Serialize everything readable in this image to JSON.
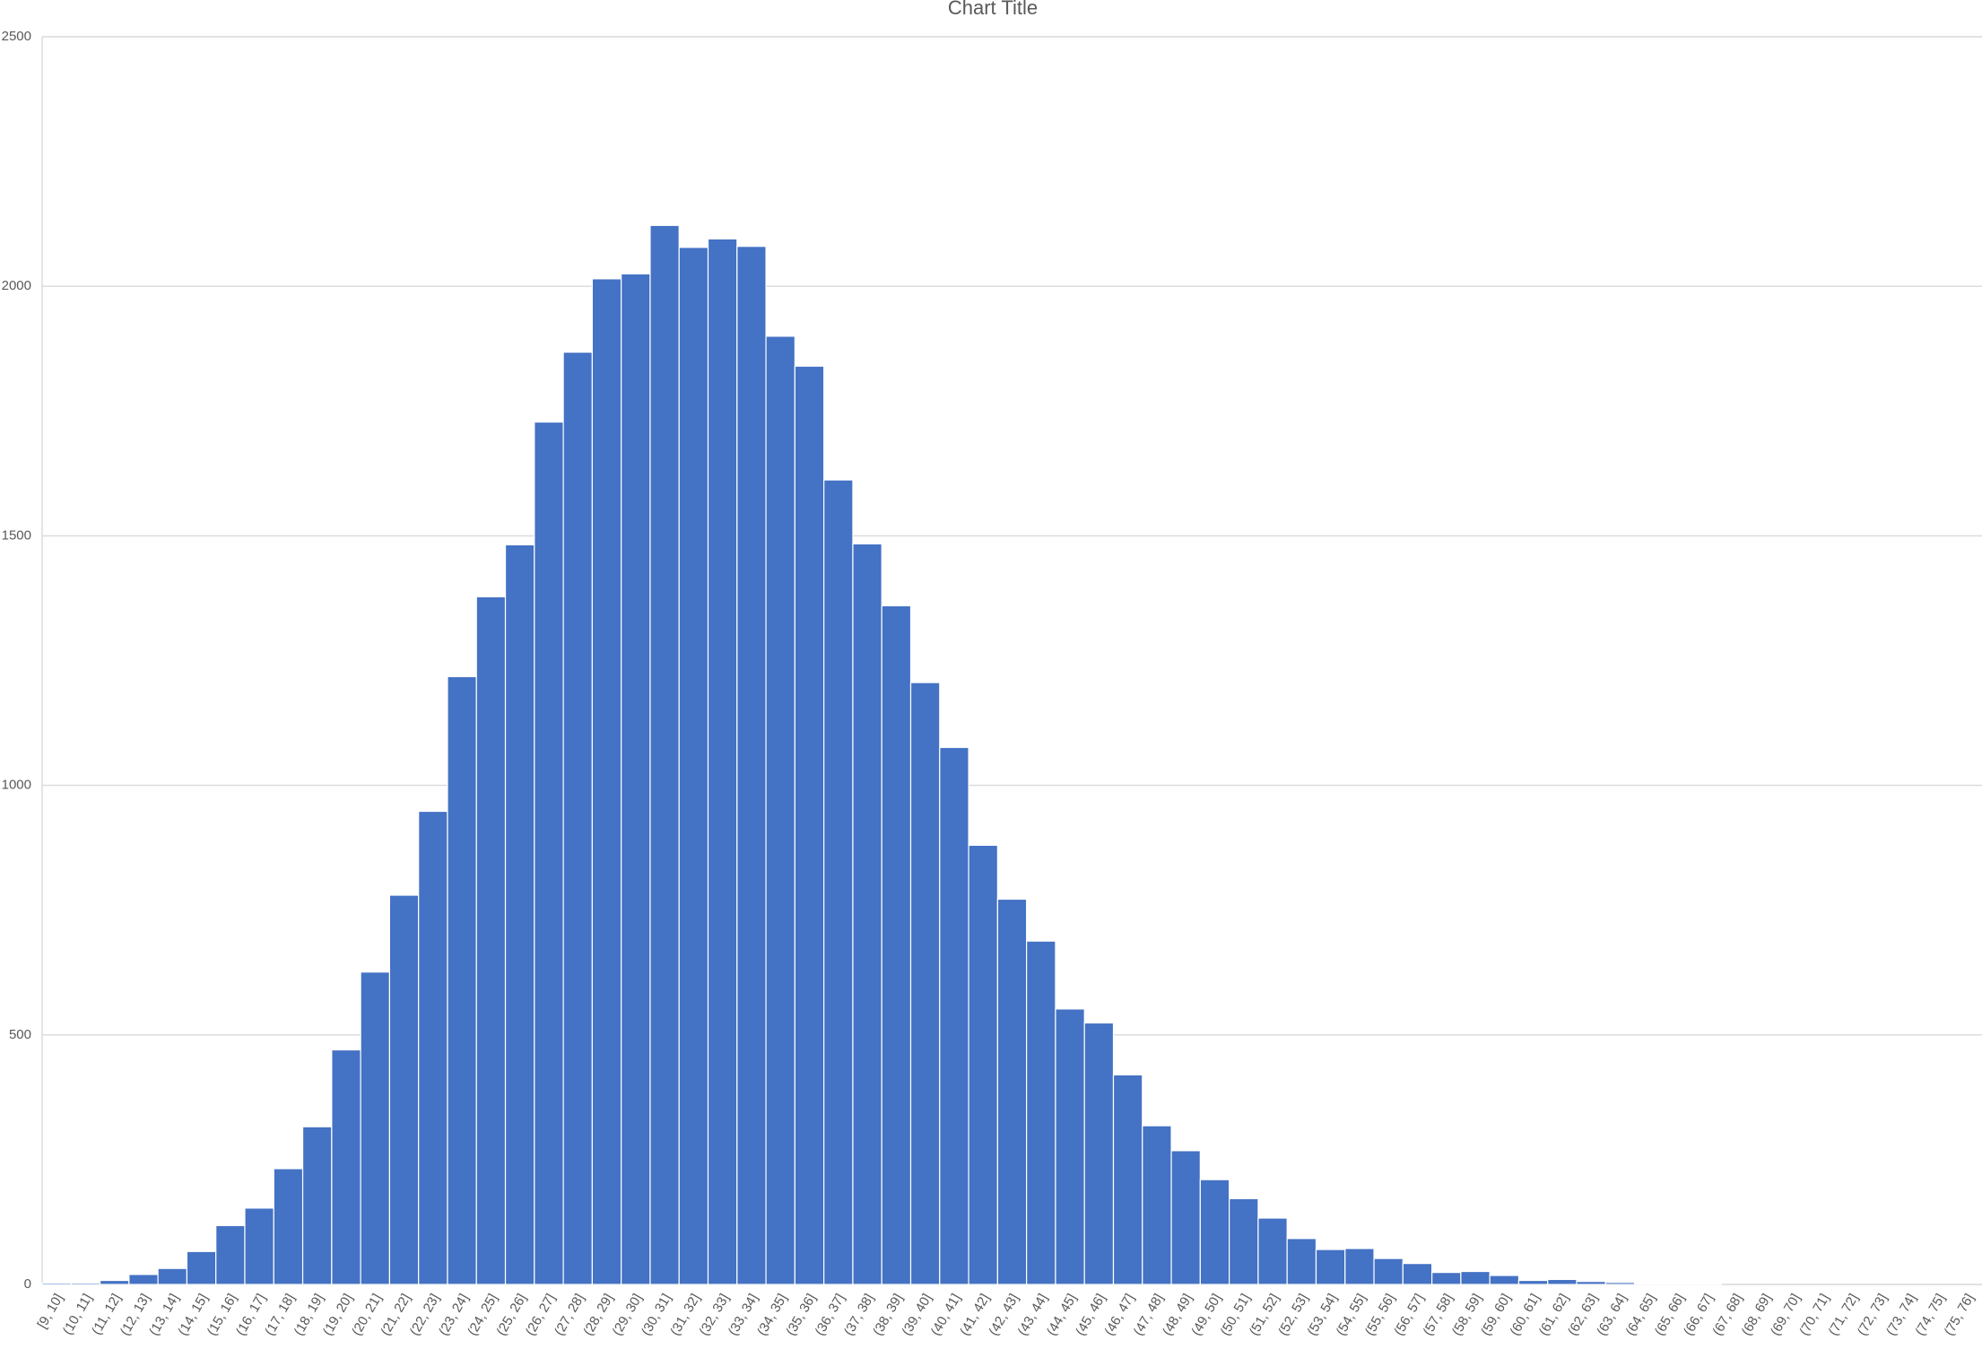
{
  "chart_data": {
    "type": "bar",
    "title": "Chart Title",
    "categories": [
      "[9, 10]",
      "(10, 11]",
      "(11, 12]",
      "(12, 13]",
      "(13, 14]",
      "(14, 15]",
      "(15, 16]",
      "(16, 17]",
      "(17, 18]",
      "(18, 19]",
      "(19, 20]",
      "(20, 21]",
      "(21, 22]",
      "(22, 23]",
      "(23, 24]",
      "(24, 25]",
      "(25, 26]",
      "(26, 27]",
      "(27, 28]",
      "(28, 29]",
      "(29, 30]",
      "(30, 31]",
      "(31, 32]",
      "(32, 33]",
      "(33, 34]",
      "(34, 35]",
      "(35, 36]",
      "(36, 37]",
      "(37, 38]",
      "(38, 39]",
      "(39, 40]",
      "(40, 41]",
      "(41, 42]",
      "(42, 43]",
      "(43, 44]",
      "(44, 45]",
      "(45, 46]",
      "(46, 47]",
      "(47, 48]",
      "(48, 49]",
      "(49, 50]",
      "(50, 51]",
      "(51, 52]",
      "(52, 53]",
      "(53, 54]",
      "(54, 55]",
      "(55, 56]",
      "(56, 57]",
      "(57, 58]",
      "(58, 59]",
      "(59, 60]",
      "(60, 61]",
      "(61, 62]",
      "(62, 63]",
      "(63, 64]",
      "(64, 65]",
      "(65, 66]",
      "(66, 67]",
      "(67, 68]",
      "(68, 69]",
      "(69, 70]",
      "(70, 71]",
      "(71, 72]",
      "(72, 73]",
      "(73, 74]",
      "(74, 75]",
      "(75, 76]"
    ],
    "values": [
      3,
      3,
      8,
      20,
      32,
      66,
      118,
      153,
      232,
      316,
      470,
      626,
      780,
      948,
      1218,
      1378,
      1482,
      1728,
      1868,
      2015,
      2025,
      2122,
      2078,
      2095,
      2080,
      1900,
      1840,
      1612,
      1484,
      1360,
      1206,
      1076,
      880,
      772,
      688,
      552,
      524,
      420,
      318,
      268,
      210,
      172,
      133,
      92,
      70,
      72,
      52,
      42,
      24,
      26,
      18,
      8,
      10,
      6,
      4,
      2,
      2,
      1,
      0,
      0,
      0,
      0,
      0,
      0,
      0,
      0,
      0
    ],
    "color": "#4472c4",
    "ylim": [
      0,
      2500
    ],
    "yticks": [
      0,
      500,
      1000,
      1500,
      2000,
      2500
    ],
    "grid": true
  }
}
